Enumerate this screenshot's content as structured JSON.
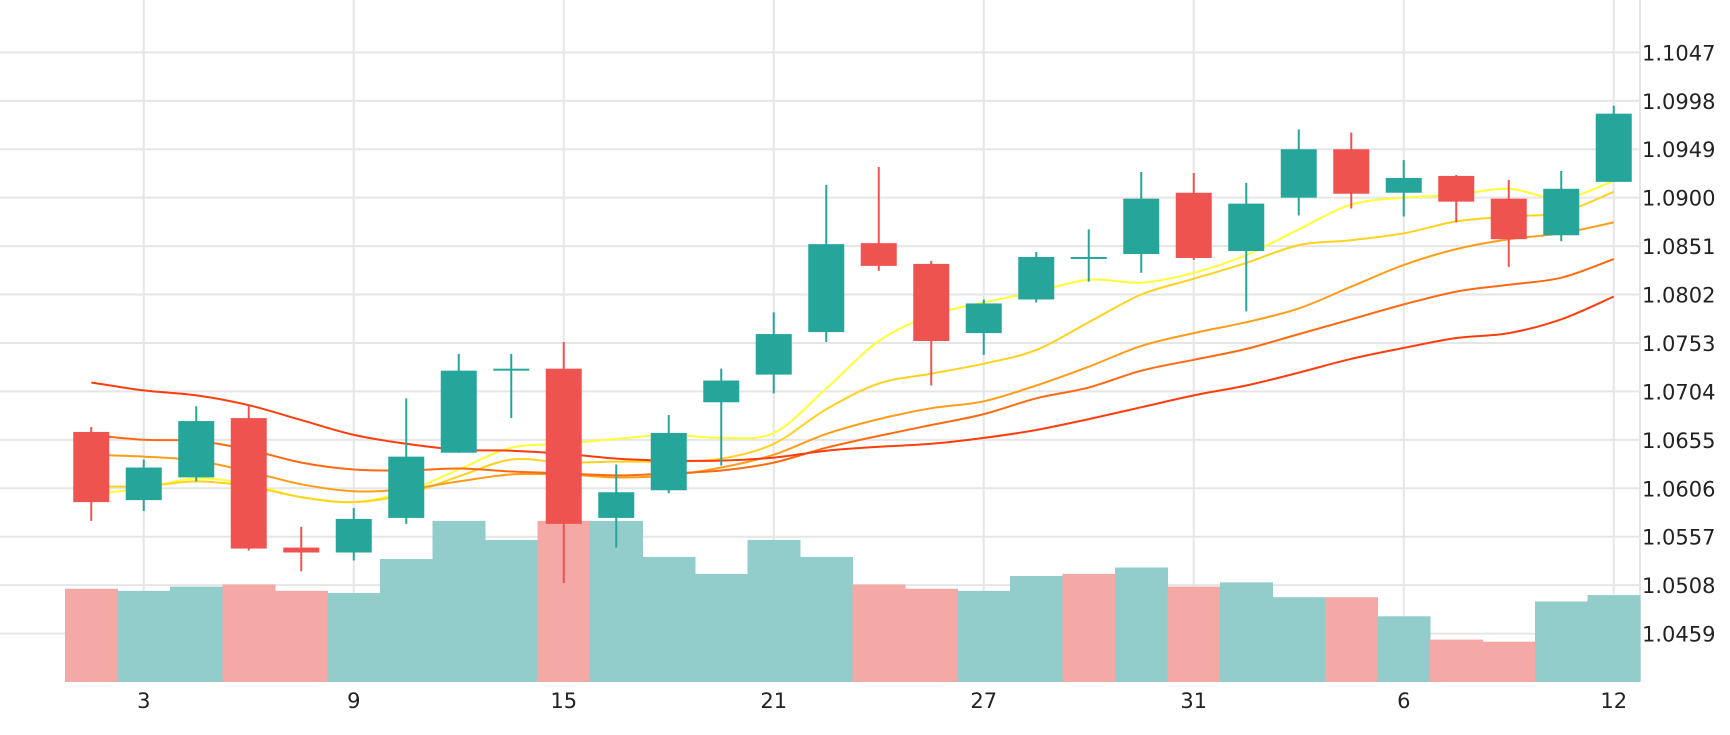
{
  "colors": {
    "up": "#26a69a",
    "down": "#ef5350",
    "volume_up": "#92cdcc",
    "volume_down": "#f4a9a7",
    "grid": "#e6e6e6",
    "ma": [
      "#ffff33",
      "#ffd21f",
      "#ff9c19",
      "#ff6a12",
      "#ff3d0d"
    ]
  },
  "chart_data": {
    "type": "candlestick",
    "title": "",
    "xlabel": "",
    "ylabel": "",
    "ylim": [
      1.041,
      1.11
    ],
    "y_ticks": [
      "1.1047",
      "1.0998",
      "1.0949",
      "1.0900",
      "1.0851",
      "1.0802",
      "1.0753",
      "1.0704",
      "1.0655",
      "1.0606",
      "1.0557",
      "1.0508",
      "1.0459"
    ],
    "x_tick_labels": [
      {
        "index": 1,
        "label": "3"
      },
      {
        "index": 5,
        "label": "9"
      },
      {
        "index": 9,
        "label": "15"
      },
      {
        "index": 13,
        "label": "21"
      },
      {
        "index": 17,
        "label": "27"
      },
      {
        "index": 21,
        "label": "31"
      },
      {
        "index": 25,
        "label": "6"
      },
      {
        "index": 29,
        "label": "12"
      }
    ],
    "grid": true,
    "candles": [
      {
        "open": 1.0663,
        "high": 1.0668,
        "low": 1.0573,
        "close": 1.0592
      },
      {
        "open": 1.0594,
        "high": 1.0635,
        "low": 1.0583,
        "close": 1.0627
      },
      {
        "open": 1.0617,
        "high": 1.0689,
        "low": 1.0613,
        "close": 1.0674
      },
      {
        "open": 1.0677,
        "high": 1.069,
        "low": 1.0543,
        "close": 1.0545
      },
      {
        "open": 1.0546,
        "high": 1.0567,
        "low": 1.0522,
        "close": 1.0541
      },
      {
        "open": 1.0541,
        "high": 1.0586,
        "low": 1.0533,
        "close": 1.0575
      },
      {
        "open": 1.0576,
        "high": 1.0697,
        "low": 1.057,
        "close": 1.0638
      },
      {
        "open": 1.0642,
        "high": 1.0742,
        "low": 1.0642,
        "close": 1.0725
      },
      {
        "open": 1.0727,
        "high": 1.0742,
        "low": 1.0677,
        "close": 1.0727
      },
      {
        "open": 1.0727,
        "high": 1.0754,
        "low": 1.051,
        "close": 1.057
      },
      {
        "open": 1.0576,
        "high": 1.063,
        "low": 1.0546,
        "close": 1.0602
      },
      {
        "open": 1.0604,
        "high": 1.068,
        "low": 1.0601,
        "close": 1.0662
      },
      {
        "open": 1.0693,
        "high": 1.0727,
        "low": 1.0629,
        "close": 1.0715
      },
      {
        "open": 1.0721,
        "high": 1.0784,
        "low": 1.0702,
        "close": 1.0762
      },
      {
        "open": 1.0764,
        "high": 1.0913,
        "low": 1.0754,
        "close": 1.0853
      },
      {
        "open": 1.0854,
        "high": 1.0931,
        "low": 1.0826,
        "close": 1.0831
      },
      {
        "open": 1.0833,
        "high": 1.0836,
        "low": 1.071,
        "close": 1.0755
      },
      {
        "open": 1.0763,
        "high": 1.0797,
        "low": 1.0741,
        "close": 1.0793
      },
      {
        "open": 1.0797,
        "high": 1.0845,
        "low": 1.0794,
        "close": 1.084
      },
      {
        "open": 1.084,
        "high": 1.0868,
        "low": 1.0815,
        "close": 1.084
      },
      {
        "open": 1.0843,
        "high": 1.0926,
        "low": 1.0824,
        "close": 1.0899
      },
      {
        "open": 1.0905,
        "high": 1.0925,
        "low": 1.0837,
        "close": 1.0839
      },
      {
        "open": 1.0846,
        "high": 1.0915,
        "low": 1.0785,
        "close": 1.0894
      },
      {
        "open": 1.09,
        "high": 1.0969,
        "low": 1.0882,
        "close": 1.0949
      },
      {
        "open": 1.0949,
        "high": 1.0966,
        "low": 1.0889,
        "close": 1.0904
      },
      {
        "open": 1.0905,
        "high": 1.0938,
        "low": 1.0881,
        "close": 1.092
      },
      {
        "open": 1.0922,
        "high": 1.0923,
        "low": 1.0875,
        "close": 1.0896
      },
      {
        "open": 1.0899,
        "high": 1.0918,
        "low": 1.083,
        "close": 1.0858
      },
      {
        "open": 1.0862,
        "high": 1.0927,
        "low": 1.0856,
        "close": 1.0909
      },
      {
        "open": 1.0916,
        "high": 1.0993,
        "low": 1.0916,
        "close": 1.0985
      }
    ],
    "volume": [
      {
        "up": false,
        "level": 0.44
      },
      {
        "up": true,
        "level": 0.43
      },
      {
        "up": true,
        "level": 0.45
      },
      {
        "up": false,
        "level": 0.46
      },
      {
        "up": false,
        "level": 0.43
      },
      {
        "up": true,
        "level": 0.42
      },
      {
        "up": true,
        "level": 0.58
      },
      {
        "up": true,
        "level": 0.76
      },
      {
        "up": true,
        "level": 0.67
      },
      {
        "up": false,
        "level": 0.76
      },
      {
        "up": true,
        "level": 0.76
      },
      {
        "up": true,
        "level": 0.59
      },
      {
        "up": true,
        "level": 0.51
      },
      {
        "up": true,
        "level": 0.67
      },
      {
        "up": true,
        "level": 0.59
      },
      {
        "up": false,
        "level": 0.46
      },
      {
        "up": false,
        "level": 0.44
      },
      {
        "up": true,
        "level": 0.43
      },
      {
        "up": true,
        "level": 0.5
      },
      {
        "up": false,
        "level": 0.51
      },
      {
        "up": true,
        "level": 0.54
      },
      {
        "up": false,
        "level": 0.45
      },
      {
        "up": true,
        "level": 0.47
      },
      {
        "up": true,
        "level": 0.4
      },
      {
        "up": false,
        "level": 0.4
      },
      {
        "up": true,
        "level": 0.31
      },
      {
        "up": false,
        "level": 0.2
      },
      {
        "up": false,
        "level": 0.19
      },
      {
        "up": true,
        "level": 0.38
      },
      {
        "up": true,
        "level": 0.41
      }
    ],
    "ma_lines": [
      {
        "values": [
          1.06,
          1.0606,
          1.0616,
          1.061,
          1.0597,
          1.0592,
          1.0603,
          1.0625,
          1.0647,
          1.0651,
          1.0656,
          1.066,
          1.0657,
          1.0662,
          1.0707,
          1.0755,
          1.0781,
          1.0794,
          1.0805,
          1.0817,
          1.0814,
          1.0824,
          1.0842,
          1.0868,
          1.0893,
          1.09,
          1.0903,
          1.0909,
          1.0899,
          1.0917
        ]
      },
      {
        "values": [
          1.0608,
          1.0608,
          1.0613,
          1.0608,
          1.0597,
          1.0592,
          1.06,
          1.0618,
          1.0635,
          1.0632,
          1.0633,
          1.0633,
          1.0636,
          1.0651,
          1.0686,
          1.0712,
          1.0722,
          1.0732,
          1.0746,
          1.0774,
          1.0802,
          1.0818,
          1.0834,
          1.0852,
          1.0857,
          1.0864,
          1.0876,
          1.0881,
          1.0885,
          1.0906
        ]
      },
      {
        "values": [
          1.064,
          1.0638,
          1.0634,
          1.0623,
          1.061,
          1.0603,
          1.0605,
          1.0613,
          1.062,
          1.062,
          1.0617,
          1.0619,
          1.0627,
          1.064,
          1.0661,
          1.0676,
          1.0687,
          1.0694,
          1.071,
          1.0729,
          1.075,
          1.0763,
          1.0774,
          1.0788,
          1.081,
          1.0832,
          1.0848,
          1.0858,
          1.0864,
          1.0875
        ]
      },
      {
        "values": [
          1.066,
          1.0655,
          1.0654,
          1.0645,
          1.0632,
          1.0625,
          1.0624,
          1.0626,
          1.0623,
          1.0621,
          1.0619,
          1.0621,
          1.0624,
          1.0632,
          1.0647,
          1.0659,
          1.067,
          1.0681,
          1.0697,
          1.0708,
          1.0725,
          1.0736,
          1.0747,
          1.0762,
          1.0777,
          1.0792,
          1.0805,
          1.0812,
          1.0819,
          1.0838
        ]
      },
      {
        "values": [
          1.0713,
          1.0705,
          1.07,
          1.069,
          1.0675,
          1.066,
          1.0651,
          1.0645,
          1.0644,
          1.0641,
          1.0636,
          1.0634,
          1.0634,
          1.0637,
          1.0644,
          1.0648,
          1.0651,
          1.0657,
          1.0665,
          1.0676,
          1.0688,
          1.07,
          1.071,
          1.0723,
          1.0737,
          1.0748,
          1.0758,
          1.0763,
          1.0777,
          1.08
        ]
      }
    ]
  }
}
